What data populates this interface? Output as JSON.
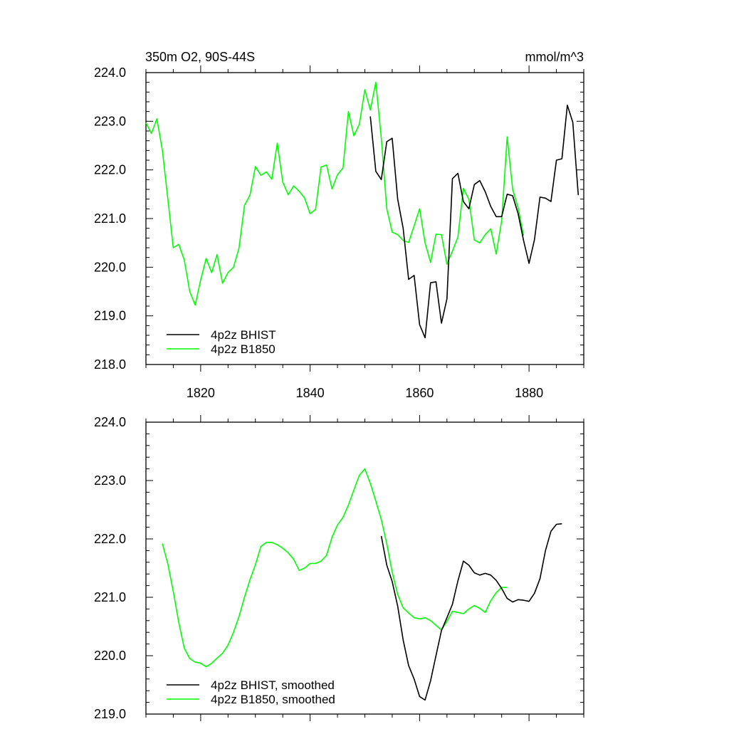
{
  "chart_data": [
    {
      "type": "line",
      "title_left": "350m O2, 90S-44S",
      "title_right": "mmol/m^3",
      "xlim": [
        1810,
        1890
      ],
      "ylim": [
        218,
        224
      ],
      "x_ticks": [
        1820,
        1840,
        1860,
        1880
      ],
      "x_tick_labels": [
        "1820",
        "1840",
        "1860",
        "1880"
      ],
      "y_ticks": [
        218,
        219,
        220,
        221,
        222,
        223,
        224
      ],
      "y_tick_labels": [
        "218.0",
        "219.0",
        "220.0",
        "221.0",
        "222.0",
        "223.0",
        "224.0"
      ],
      "legend_position": "bottom-left",
      "series": [
        {
          "name": "4p2z BHIST",
          "color": "#000000",
          "x": [
            1851,
            1852,
            1853,
            1854,
            1855,
            1856,
            1857,
            1858,
            1859,
            1860,
            1861,
            1862,
            1863,
            1864,
            1865,
            1866,
            1867,
            1868,
            1869,
            1870,
            1871,
            1872,
            1873,
            1874,
            1875,
            1876,
            1877,
            1878,
            1879,
            1880,
            1881,
            1882,
            1883,
            1884,
            1885,
            1886,
            1887,
            1888,
            1889
          ],
          "y": [
            223.1,
            221.97,
            221.8,
            222.58,
            222.65,
            221.4,
            220.8,
            219.75,
            219.83,
            218.82,
            218.55,
            219.68,
            219.7,
            218.85,
            219.35,
            221.82,
            221.93,
            221.35,
            221.2,
            221.7,
            221.78,
            221.55,
            221.25,
            221.04,
            221.04,
            221.5,
            221.47,
            221.1,
            220.55,
            220.08,
            220.57,
            221.44,
            221.42,
            221.35,
            222.2,
            222.23,
            223.33,
            222.98,
            221.48
          ]
        },
        {
          "name": "4p2z B1850",
          "color": "#00ff00",
          "x": [
            1810,
            1811,
            1812,
            1813,
            1814,
            1815,
            1816,
            1817,
            1818,
            1819,
            1820,
            1821,
            1822,
            1823,
            1824,
            1825,
            1826,
            1827,
            1828,
            1829,
            1830,
            1831,
            1832,
            1833,
            1834,
            1835,
            1836,
            1837,
            1838,
            1839,
            1840,
            1841,
            1842,
            1843,
            1844,
            1845,
            1846,
            1847,
            1848,
            1849,
            1850,
            1851,
            1852,
            1853,
            1854,
            1855,
            1856,
            1857,
            1858,
            1859,
            1860,
            1861,
            1862,
            1863,
            1864,
            1865,
            1866,
            1867,
            1868,
            1869,
            1870,
            1871,
            1872,
            1873,
            1874,
            1875,
            1876,
            1877,
            1878,
            1879
          ],
          "y": [
            222.97,
            222.75,
            223.05,
            222.4,
            221.4,
            220.4,
            220.47,
            220.15,
            219.5,
            219.22,
            219.74,
            220.18,
            219.89,
            220.26,
            219.67,
            219.89,
            220.0,
            220.39,
            221.27,
            221.48,
            222.07,
            221.89,
            221.96,
            221.81,
            222.55,
            221.75,
            221.49,
            221.67,
            221.56,
            221.42,
            221.1,
            221.19,
            222.06,
            222.1,
            221.61,
            221.9,
            222.04,
            223.2,
            222.7,
            222.94,
            223.65,
            223.23,
            223.8,
            222.65,
            221.2,
            220.72,
            220.67,
            220.55,
            220.51,
            220.85,
            221.2,
            220.5,
            220.1,
            220.68,
            220.67,
            220.06,
            220.33,
            220.62,
            221.62,
            221.4,
            220.56,
            220.5,
            220.67,
            220.79,
            220.27,
            220.96,
            222.68,
            221.6,
            221.22,
            220.65
          ]
        }
      ]
    },
    {
      "type": "line",
      "xlim": [
        1810,
        1890
      ],
      "ylim": [
        219,
        224
      ],
      "x_ticks": [
        1820,
        1840,
        1860,
        1880
      ],
      "y_ticks": [
        219,
        220,
        221,
        222,
        223,
        224
      ],
      "y_tick_labels": [
        "219.0",
        "220.0",
        "221.0",
        "222.0",
        "223.0",
        "224.0"
      ],
      "legend_position": "bottom-left",
      "series": [
        {
          "name": "4p2z BHIST, smoothed",
          "color": "#000000",
          "x": [
            1853,
            1854,
            1855,
            1856,
            1857,
            1858,
            1859,
            1860,
            1861,
            1862,
            1863,
            1864,
            1865,
            1866,
            1867,
            1868,
            1869,
            1870,
            1871,
            1872,
            1873,
            1874,
            1875,
            1876,
            1877,
            1878,
            1879,
            1880,
            1881,
            1882,
            1883,
            1884,
            1885,
            1886
          ],
          "y": [
            222.05,
            221.55,
            221.27,
            220.85,
            220.27,
            219.83,
            219.6,
            219.3,
            219.24,
            219.57,
            220.0,
            220.43,
            220.65,
            220.88,
            221.28,
            221.62,
            221.55,
            221.42,
            221.38,
            221.41,
            221.38,
            221.29,
            221.15,
            220.98,
            220.92,
            220.96,
            220.95,
            220.93,
            221.07,
            221.32,
            221.8,
            222.13,
            222.25,
            222.26
          ]
        },
        {
          "name": "4p2z B1850, smoothed",
          "color": "#00ff00",
          "x": [
            1813,
            1814,
            1815,
            1816,
            1817,
            1818,
            1819,
            1820,
            1821,
            1822,
            1823,
            1824,
            1825,
            1826,
            1827,
            1828,
            1829,
            1830,
            1831,
            1832,
            1833,
            1834,
            1835,
            1836,
            1837,
            1838,
            1839,
            1840,
            1841,
            1842,
            1843,
            1844,
            1845,
            1846,
            1847,
            1848,
            1849,
            1850,
            1851,
            1852,
            1853,
            1854,
            1855,
            1856,
            1857,
            1858,
            1859,
            1860,
            1861,
            1862,
            1863,
            1864,
            1865,
            1866,
            1867,
            1868,
            1869,
            1870,
            1871,
            1872,
            1873,
            1874,
            1875,
            1876
          ],
          "y": [
            221.92,
            221.57,
            221.1,
            220.57,
            220.13,
            219.95,
            219.89,
            219.87,
            219.81,
            219.87,
            219.96,
            220.04,
            220.18,
            220.4,
            220.67,
            221.0,
            221.3,
            221.56,
            221.87,
            221.94,
            221.94,
            221.9,
            221.84,
            221.76,
            221.65,
            221.46,
            221.5,
            221.58,
            221.58,
            221.62,
            221.72,
            222.03,
            222.24,
            222.37,
            222.58,
            222.84,
            223.09,
            223.2,
            222.95,
            222.65,
            222.33,
            221.92,
            221.43,
            221.05,
            220.82,
            220.73,
            220.65,
            220.63,
            220.65,
            220.6,
            220.52,
            220.44,
            220.59,
            220.76,
            220.74,
            220.72,
            220.8,
            220.86,
            220.81,
            220.74,
            220.94,
            221.08,
            221.17,
            221.17
          ]
        }
      ]
    }
  ]
}
